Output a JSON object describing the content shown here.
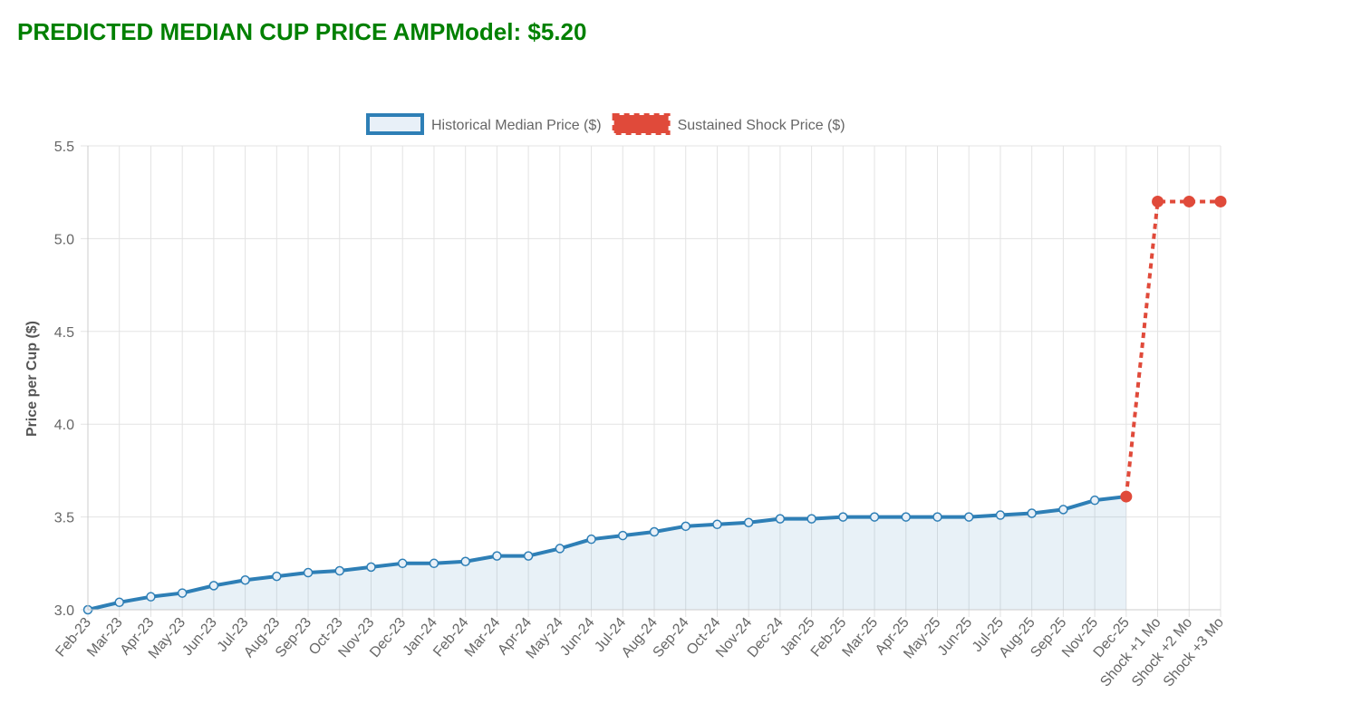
{
  "chart_data": {
    "type": "line",
    "title": "PREDICTED MEDIAN CUP PRICE AMPModel: $5.20",
    "y_label": "Price per Cup ($)",
    "categories": [
      "Feb-23",
      "Mar-23",
      "Apr-23",
      "May-23",
      "Jun-23",
      "Jul-23",
      "Aug-23",
      "Sep-23",
      "Oct-23",
      "Nov-23",
      "Dec-23",
      "Jan-24",
      "Feb-24",
      "Mar-24",
      "Apr-24",
      "May-24",
      "Jun-24",
      "Jul-24",
      "Aug-24",
      "Sep-24",
      "Oct-24",
      "Nov-24",
      "Dec-24",
      "Jan-25",
      "Feb-25",
      "Mar-25",
      "Apr-25",
      "May-25",
      "Jun-25",
      "Jul-25",
      "Aug-25",
      "Sep-25",
      "Nov-25",
      "Dec-25",
      "Shock +1 Mo",
      "Shock +2 Mo",
      "Shock +3 Mo"
    ],
    "series": [
      {
        "name": "Historical Median Price ($)",
        "color": "#2e7fb6",
        "fill": true,
        "dashed": false,
        "values": [
          3.0,
          3.04,
          3.07,
          3.09,
          3.13,
          3.16,
          3.18,
          3.2,
          3.21,
          3.23,
          3.25,
          3.25,
          3.26,
          3.29,
          3.29,
          3.33,
          3.38,
          3.4,
          3.42,
          3.45,
          3.46,
          3.47,
          3.49,
          3.49,
          3.5,
          3.5,
          3.5,
          3.5,
          3.5,
          3.51,
          3.52,
          3.54,
          3.59,
          3.61,
          null,
          null,
          null
        ]
      },
      {
        "name": "Sustained Shock Price ($)",
        "color": "#e04a3a",
        "fill": false,
        "dashed": true,
        "values": [
          null,
          null,
          null,
          null,
          null,
          null,
          null,
          null,
          null,
          null,
          null,
          null,
          null,
          null,
          null,
          null,
          null,
          null,
          null,
          null,
          null,
          null,
          null,
          null,
          null,
          null,
          null,
          null,
          null,
          null,
          null,
          null,
          null,
          3.61,
          5.2,
          5.2,
          5.2
        ]
      }
    ],
    "ylim": [
      3,
      5.5
    ],
    "yticks": [
      {
        "value": 3,
        "label": "3.0"
      },
      {
        "value": 3.5,
        "label": "3.5"
      },
      {
        "value": 4,
        "label": "4.0"
      },
      {
        "value": 4.5,
        "label": "4.5"
      },
      {
        "value": 5,
        "label": "5.0"
      },
      {
        "value": 5.5,
        "label": "5.5"
      }
    ],
    "grid": true,
    "legend": "top"
  }
}
